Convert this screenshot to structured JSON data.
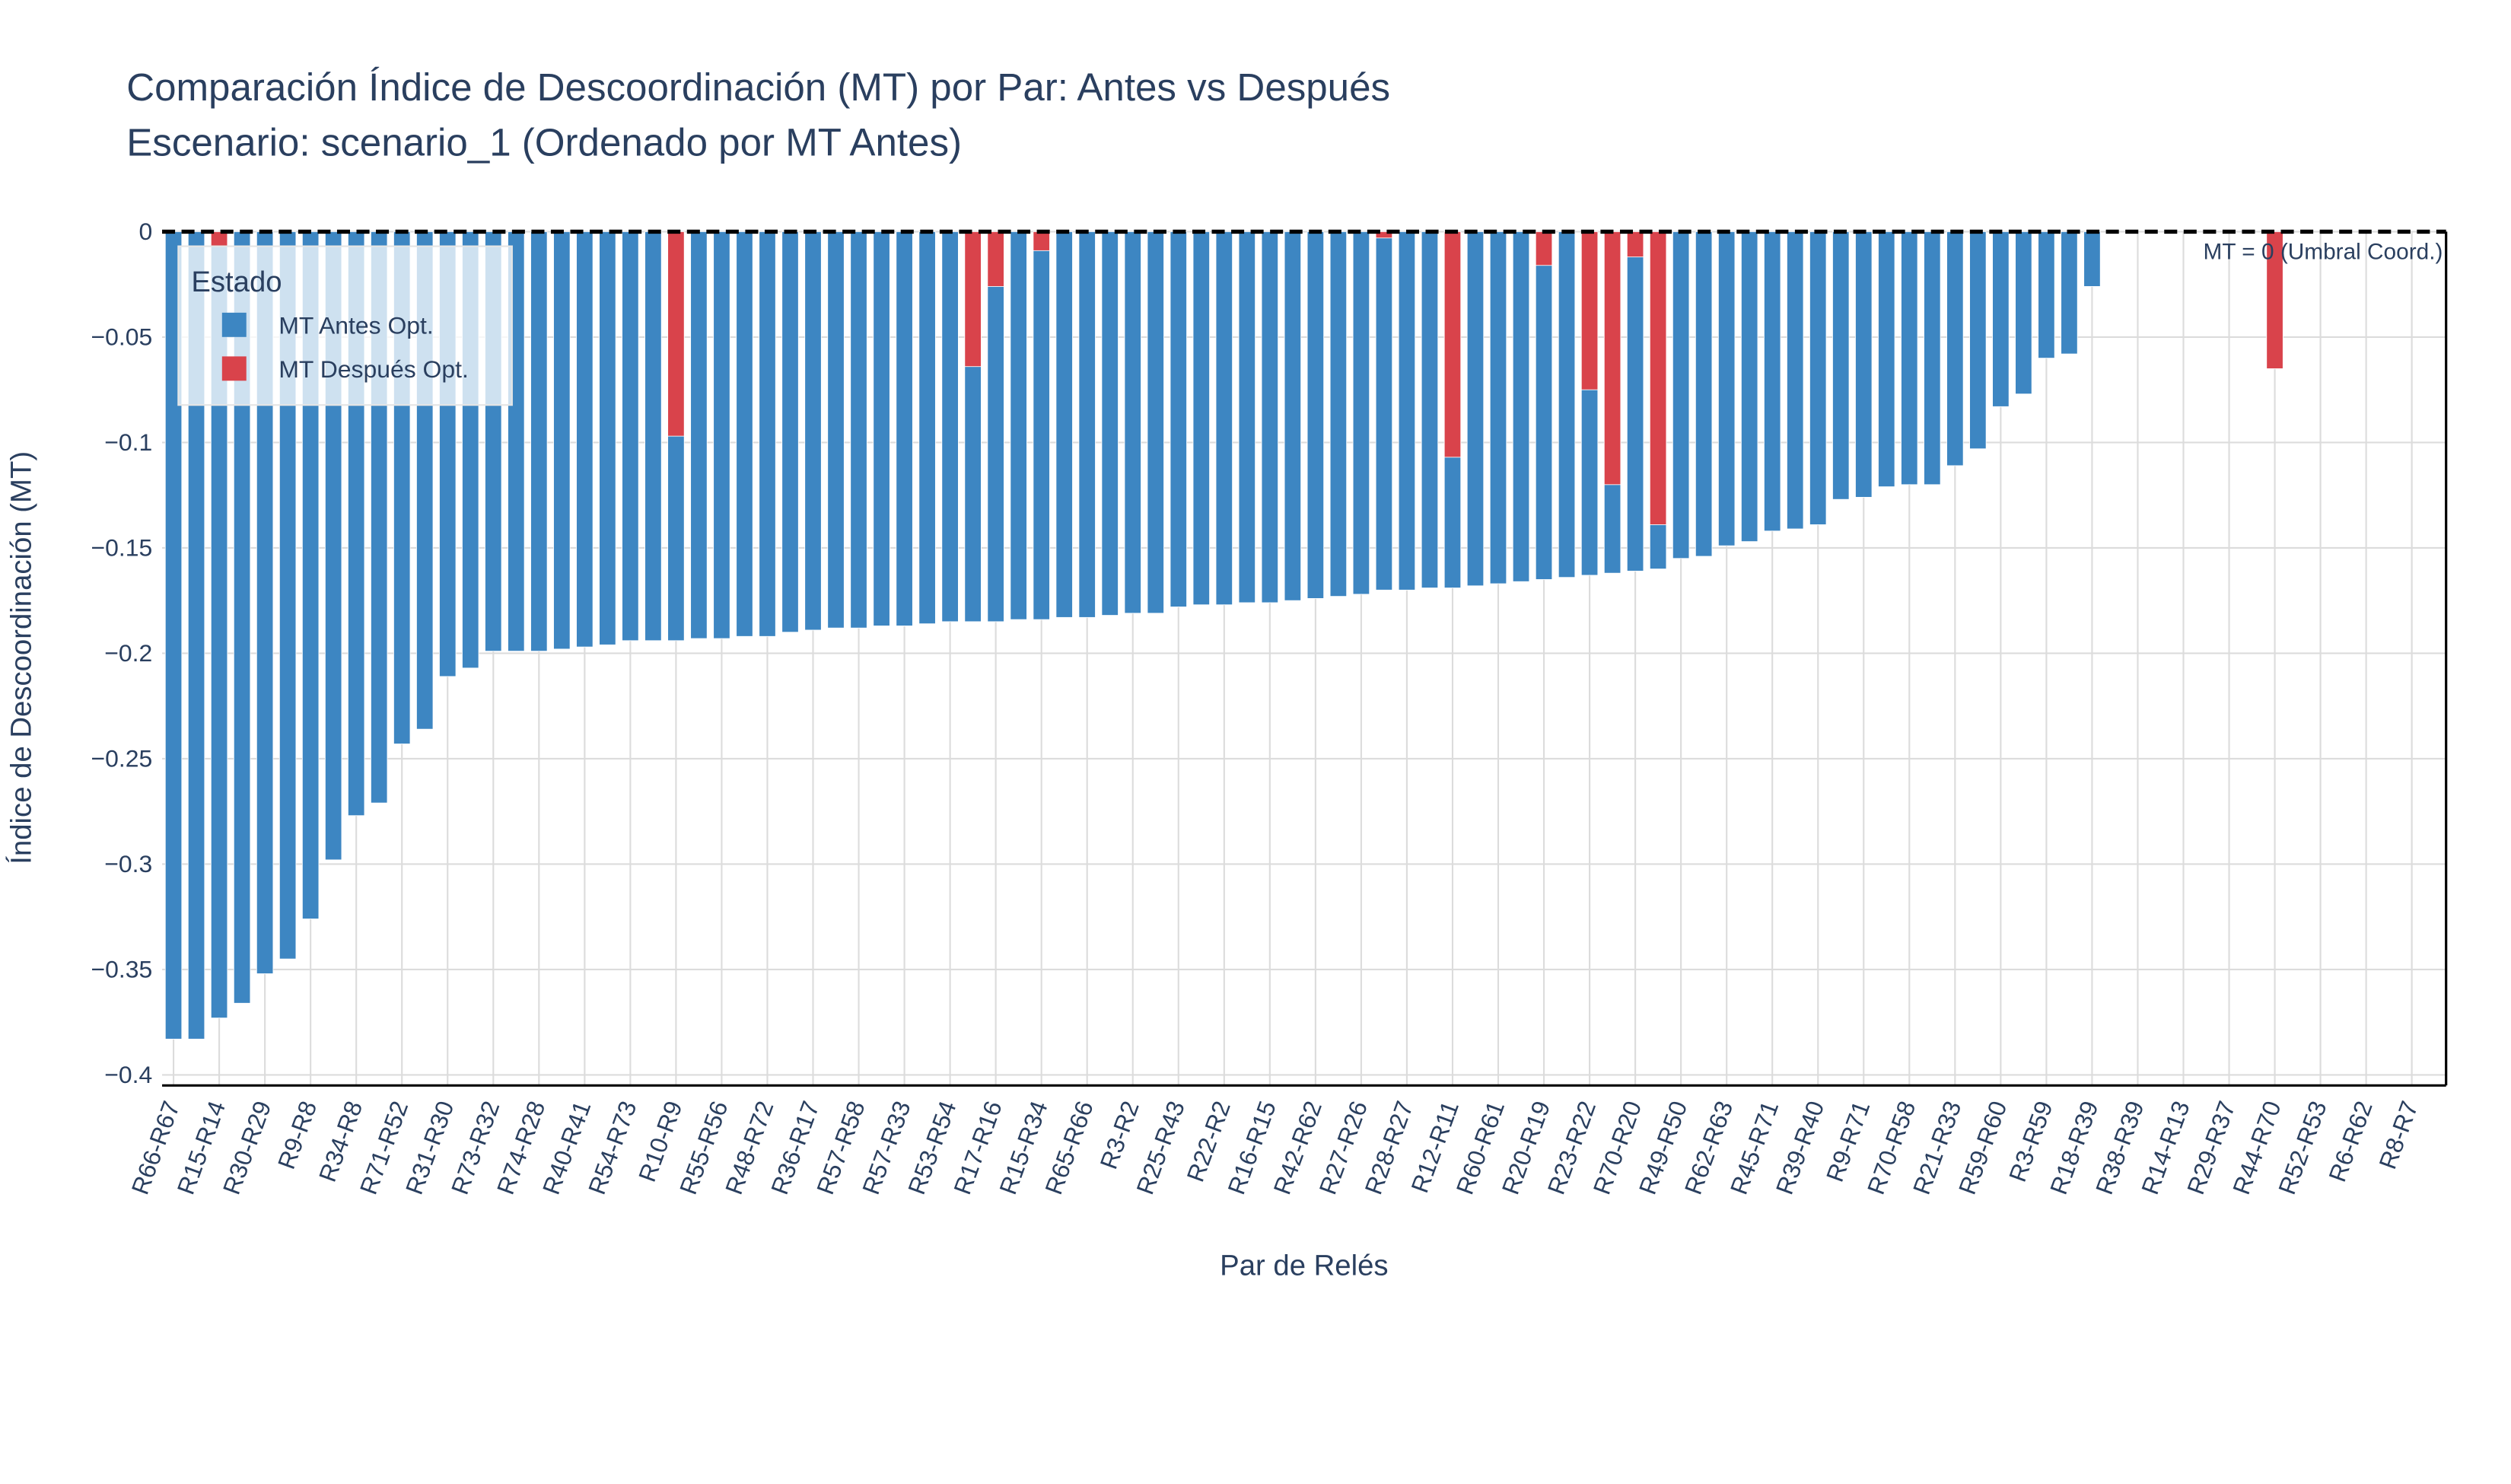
{
  "chart_data": {
    "type": "bar",
    "title": "Comparación Índice de Descoordinación (MT) por Par: Antes vs Después",
    "subtitle": "Escenario: scenario_1 (Ordenado por MT Antes)",
    "x_label": "Par de Relés",
    "y_label": "Índice de Descoordinación (MT)",
    "legend_title": "Estado",
    "legend_position": "upper left",
    "annotation": "MT = 0 (Umbral Coord.)",
    "grid": true,
    "categories": [
      "R66-R67",
      null,
      "R15-R14",
      null,
      "R30-R29",
      null,
      "R9-R8",
      null,
      "R34-R8",
      null,
      "R71-R52",
      null,
      "R31-R30",
      null,
      "R73-R32",
      null,
      "R74-R28",
      null,
      "R40-R41",
      null,
      "R54-R73",
      null,
      "R10-R9",
      null,
      "R55-R56",
      null,
      "R48-R72",
      null,
      "R36-R17",
      null,
      "R57-R58",
      null,
      "R57-R33",
      null,
      "R53-R54",
      null,
      "R17-R16",
      null,
      "R15-R34",
      null,
      "R65-R66",
      null,
      "R3-R2",
      null,
      "R25-R43",
      null,
      "R22-R2",
      null,
      "R16-R15",
      null,
      "R42-R62",
      null,
      "R27-R26",
      null,
      "R28-R27",
      null,
      "R12-R11",
      null,
      "R60-R61",
      null,
      "R20-R19",
      null,
      "R23-R22",
      null,
      "R70-R20",
      null,
      "R49-R50",
      null,
      "R62-R63",
      null,
      "R45-R71",
      null,
      "R39-R40",
      null,
      "R9-R71",
      null,
      "R70-R58",
      null,
      "R21-R33",
      null,
      "R59-R60",
      null,
      "R3-R59",
      null,
      "R18-R39",
      null,
      "R38-R39",
      null,
      "R14-R13",
      null,
      "R29-R37",
      null,
      "R44-R70",
      null,
      "R52-R53",
      null,
      "R6-R62",
      null,
      "R8-R7",
      null
    ],
    "series": [
      {
        "name": "MT Antes Opt.",
        "color": "#3d86c2",
        "values": [
          -0.383,
          -0.383,
          -0.373,
          -0.366,
          -0.352,
          -0.345,
          -0.326,
          -0.298,
          -0.277,
          -0.271,
          -0.243,
          -0.236,
          -0.211,
          -0.207,
          -0.199,
          -0.199,
          -0.199,
          -0.198,
          -0.197,
          -0.196,
          -0.194,
          -0.194,
          -0.194,
          -0.193,
          -0.193,
          -0.192,
          -0.192,
          -0.19,
          -0.189,
          -0.188,
          -0.188,
          -0.187,
          -0.187,
          -0.186,
          -0.185,
          -0.185,
          -0.185,
          -0.184,
          -0.184,
          -0.183,
          -0.183,
          -0.182,
          -0.181,
          -0.181,
          -0.178,
          -0.177,
          -0.177,
          -0.176,
          -0.176,
          -0.175,
          -0.174,
          -0.173,
          -0.172,
          -0.17,
          -0.17,
          -0.169,
          -0.169,
          -0.168,
          -0.167,
          -0.166,
          -0.165,
          -0.164,
          -0.163,
          -0.162,
          -0.161,
          -0.16,
          -0.155,
          -0.154,
          -0.149,
          -0.147,
          -0.142,
          -0.141,
          -0.139,
          -0.127,
          -0.126,
          -0.121,
          -0.12,
          -0.12,
          -0.111,
          -0.103,
          -0.083,
          -0.077,
          -0.06,
          -0.058,
          -0.026,
          0,
          0,
          0,
          0,
          0,
          0,
          0,
          0,
          0,
          0,
          0,
          0,
          0,
          0,
          0
        ]
      },
      {
        "name": "MT Después Opt.",
        "color": "#d9434b",
        "values": [
          0,
          0,
          -0.007,
          0,
          0,
          0,
          0,
          0,
          0,
          0,
          0,
          0,
          0,
          0,
          0,
          0,
          0,
          0,
          0,
          0,
          0,
          0,
          -0.097,
          0,
          0,
          0,
          0,
          0,
          0,
          0,
          0,
          0,
          0,
          0,
          0,
          -0.064,
          -0.026,
          0,
          -0.009,
          0,
          0,
          0,
          0,
          0,
          0,
          0,
          0,
          0,
          0,
          0,
          0,
          0,
          0,
          -0.003,
          0,
          0,
          -0.107,
          0,
          0,
          0,
          -0.016,
          0,
          -0.075,
          -0.12,
          -0.012,
          -0.139,
          0,
          0,
          0,
          0,
          0,
          0,
          0,
          0,
          0,
          0,
          0,
          0,
          0,
          0,
          0,
          0,
          0,
          0,
          0,
          0,
          0,
          0,
          0,
          0,
          0,
          0,
          -0.065,
          0,
          0,
          0,
          0,
          0,
          0,
          0
        ]
      }
    ],
    "ylim": [
      -0.405,
      0
    ],
    "yticks": [
      0,
      {
        "value": -0.05,
        "label": "−0.05"
      },
      {
        "value": -0.1,
        "label": "−0.1"
      },
      {
        "value": -0.15,
        "label": "−0.15"
      },
      {
        "value": -0.2,
        "label": "−0.2"
      },
      {
        "value": -0.25,
        "label": "−0.25"
      },
      {
        "value": -0.3,
        "label": "−0.3"
      },
      {
        "value": -0.35,
        "label": "−0.35"
      },
      {
        "value": -0.4,
        "label": "−0.4"
      }
    ]
  }
}
